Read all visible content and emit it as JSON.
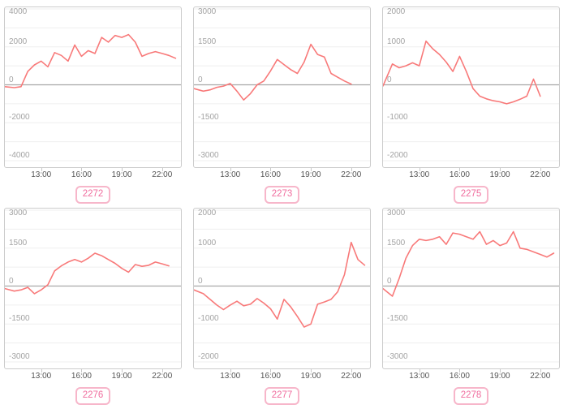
{
  "style": {
    "line_color": "#f87979",
    "grid_color": "#efefef",
    "zero_line_color": "#a8a8a8",
    "panel_border_color": "#cccccc",
    "y_label_color": "#a3a3a3",
    "x_label_color": "#555555",
    "badge_border_color": "#f7b6ca",
    "badge_text_color": "#f06d9e"
  },
  "axis": {
    "x_domain": [
      10.3,
      23.4
    ],
    "xticks": [
      {
        "h": 13,
        "label": "13:00"
      },
      {
        "h": 16,
        "label": "16:00"
      },
      {
        "h": 19,
        "label": "19:00"
      },
      {
        "h": 22,
        "label": "22:00"
      }
    ]
  },
  "chart_data": [
    {
      "type": "line",
      "id_label": "2272",
      "ymax": 4000,
      "ylabel_step": 2000,
      "grid_step": 1000,
      "ytick_labels": [
        "4000",
        "2000",
        "0",
        "-2000",
        "-4000"
      ],
      "x": [
        10.3,
        11,
        11.5,
        12,
        12.5,
        13,
        13.5,
        14,
        14.5,
        15,
        15.5,
        16,
        16.5,
        17,
        17.5,
        18,
        18.5,
        19,
        19.5,
        20,
        20.5,
        21,
        21.5,
        22,
        22.5,
        23
      ],
      "values": [
        -100,
        -150,
        -100,
        700,
        1050,
        1250,
        950,
        1700,
        1550,
        1250,
        2100,
        1500,
        1800,
        1650,
        2500,
        2250,
        2600,
        2500,
        2650,
        2250,
        1500,
        1650,
        1750,
        1650,
        1550,
        1400
      ]
    },
    {
      "type": "line",
      "id_label": "2273",
      "ymax": 3000,
      "ylabel_step": 1500,
      "grid_step": 750,
      "ytick_labels": [
        "3000",
        "1500",
        "0",
        "-1500",
        "-3000"
      ],
      "x": [
        10.3,
        11,
        11.5,
        12,
        12.5,
        13,
        13.5,
        14,
        14.5,
        15,
        15.5,
        16,
        16.5,
        17,
        17.5,
        18,
        18.5,
        19,
        19.5,
        20,
        20.5,
        21,
        21.5,
        22
      ],
      "values": [
        -150,
        -250,
        -200,
        -100,
        -50,
        50,
        -250,
        -600,
        -350,
        0,
        150,
        550,
        1000,
        800,
        600,
        450,
        900,
        1600,
        1200,
        1100,
        450,
        300,
        150,
        30
      ]
    },
    {
      "type": "line",
      "id_label": "2275",
      "ymax": 2000,
      "ylabel_step": 1000,
      "grid_step": 500,
      "ytick_labels": [
        "2000",
        "1000",
        "0",
        "-1000",
        "-2000"
      ],
      "x": [
        10.3,
        11,
        11.5,
        12,
        12.5,
        13,
        13.5,
        14,
        14.5,
        15,
        15.5,
        16,
        16.5,
        17,
        17.5,
        18,
        18.5,
        19,
        19.5,
        20,
        20.5,
        21,
        21.5,
        22
      ],
      "values": [
        -30,
        550,
        450,
        500,
        580,
        500,
        1150,
        950,
        800,
        600,
        350,
        750,
        350,
        -100,
        -300,
        -370,
        -420,
        -450,
        -500,
        -450,
        -380,
        -300,
        150,
        -300
      ]
    },
    {
      "type": "line",
      "id_label": "2276",
      "ymax": 3000,
      "ylabel_step": 1500,
      "grid_step": 750,
      "ytick_labels": [
        "3000",
        "1500",
        "0",
        "-1500",
        "-3000"
      ],
      "x": [
        10.3,
        11,
        11.5,
        12,
        12.5,
        13,
        13.5,
        14,
        14.5,
        15,
        15.5,
        16,
        16.5,
        17,
        17.5,
        18,
        18.5,
        19,
        19.5,
        20,
        20.5,
        21,
        21.5,
        22,
        22.5
      ],
      "values": [
        -100,
        -200,
        -150,
        -50,
        -300,
        -150,
        50,
        600,
        800,
        950,
        1050,
        950,
        1100,
        1300,
        1200,
        1050,
        900,
        700,
        550,
        850,
        780,
        820,
        950,
        880,
        800
      ]
    },
    {
      "type": "line",
      "id_label": "2277",
      "ymax": 2000,
      "ylabel_step": 1000,
      "grid_step": 500,
      "ytick_labels": [
        "2000",
        "1000",
        "0",
        "-1000",
        "-2000"
      ],
      "x": [
        10.3,
        11,
        11.5,
        12,
        12.5,
        13,
        13.5,
        14,
        14.5,
        15,
        15.5,
        16,
        16.5,
        17,
        17.5,
        18,
        18.5,
        19,
        19.5,
        20,
        20.5,
        21,
        21.5,
        22,
        22.5,
        23
      ],
      "values": [
        -100,
        -200,
        -350,
        -500,
        -620,
        -500,
        -400,
        -520,
        -480,
        -330,
        -450,
        -600,
        -870,
        -350,
        -550,
        -800,
        -1080,
        -1000,
        -480,
        -420,
        -350,
        -150,
        300,
        1150,
        700,
        550
      ]
    },
    {
      "type": "line",
      "id_label": "2278",
      "ymax": 3000,
      "ylabel_step": 1500,
      "grid_step": 750,
      "ytick_labels": [
        "3000",
        "1500",
        "0",
        "-1500",
        "-3000"
      ],
      "x": [
        10.3,
        11,
        11.5,
        12,
        12.5,
        13,
        13.5,
        14,
        14.5,
        15,
        15.5,
        16,
        16.5,
        17,
        17.5,
        18,
        18.5,
        19,
        19.5,
        20,
        20.5,
        21,
        21.5,
        22,
        22.5,
        23
      ],
      "values": [
        -100,
        -400,
        300,
        1100,
        1600,
        1850,
        1800,
        1850,
        1950,
        1650,
        2100,
        2050,
        1950,
        1850,
        2150,
        1650,
        1800,
        1600,
        1700,
        2150,
        1500,
        1450,
        1350,
        1250,
        1150,
        1300
      ]
    }
  ]
}
